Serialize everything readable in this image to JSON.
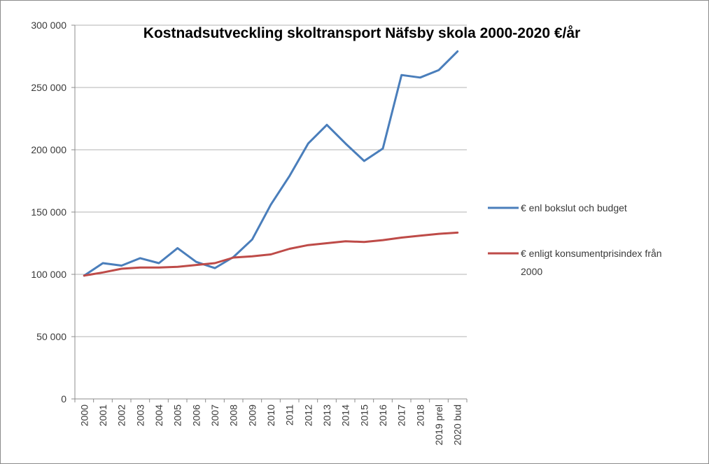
{
  "chart_data": {
    "type": "line",
    "title": "Kostnadsutveckling skoltransport Näfsby skola 2000-2020 €/år",
    "xlabel": "",
    "ylabel": "",
    "categories": [
      "2000",
      "2001",
      "2002",
      "2003",
      "2004",
      "2005",
      "2006",
      "2007",
      "2008",
      "2009",
      "2010",
      "2011",
      "2012",
      "2013",
      "2014",
      "2015",
      "2016",
      "2017",
      "2018",
      "2019 prel",
      "2020 bud"
    ],
    "series": [
      {
        "name": "€ enl bokslut och budget",
        "color": "#4a7ebb",
        "values": [
          99000,
          109000,
          107000,
          113000,
          109000,
          121000,
          110000,
          105000,
          114000,
          128000,
          156000,
          179000,
          205000,
          220000,
          205000,
          191000,
          201000,
          260000,
          258000,
          264000,
          279000
        ]
      },
      {
        "name_lines": [
          "€ enligt konsumentprisindex från",
          "2000"
        ],
        "color": "#be4b48",
        "values": [
          99000,
          101500,
          104500,
          105500,
          105500,
          106000,
          107500,
          109000,
          113500,
          114500,
          116000,
          120500,
          123500,
          125000,
          126500,
          126000,
          127500,
          129500,
          131000,
          132500,
          133500
        ]
      }
    ],
    "y_ticks": [
      "0",
      "50 000",
      "100 000",
      "150 000",
      "200 000",
      "250 000",
      "300 000"
    ],
    "ylim": [
      0,
      300000
    ],
    "grid": "horizontal",
    "legend_position": "right"
  }
}
